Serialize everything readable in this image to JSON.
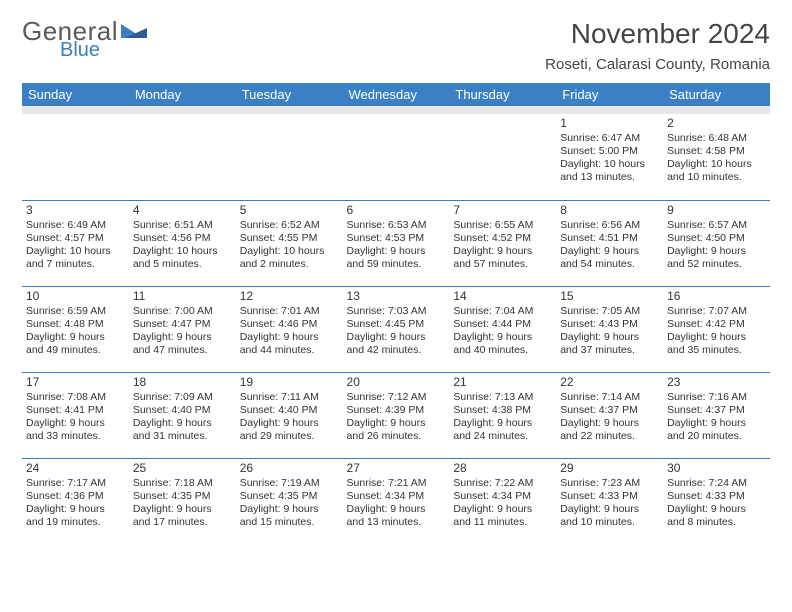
{
  "logo": {
    "text1": "General",
    "text2": "Blue",
    "color_gray": "#5a5a5a",
    "color_blue": "#3b7fc4"
  },
  "title": "November 2024",
  "location": "Roseti, Calarasi County, Romania",
  "header_bg": "#3b7fc4",
  "spacer_bg": "#e8e8e8",
  "day_border": "#3b7fc4",
  "font_family": "Arial",
  "day_headers": [
    "Sunday",
    "Monday",
    "Tuesday",
    "Wednesday",
    "Thursday",
    "Friday",
    "Saturday"
  ],
  "weeks": [
    [
      null,
      null,
      null,
      null,
      null,
      {
        "n": "1",
        "sunrise": "6:47 AM",
        "sunset": "5:00 PM",
        "daylight": "10 hours and 13 minutes."
      },
      {
        "n": "2",
        "sunrise": "6:48 AM",
        "sunset": "4:58 PM",
        "daylight": "10 hours and 10 minutes."
      }
    ],
    [
      {
        "n": "3",
        "sunrise": "6:49 AM",
        "sunset": "4:57 PM",
        "daylight": "10 hours and 7 minutes."
      },
      {
        "n": "4",
        "sunrise": "6:51 AM",
        "sunset": "4:56 PM",
        "daylight": "10 hours and 5 minutes."
      },
      {
        "n": "5",
        "sunrise": "6:52 AM",
        "sunset": "4:55 PM",
        "daylight": "10 hours and 2 minutes."
      },
      {
        "n": "6",
        "sunrise": "6:53 AM",
        "sunset": "4:53 PM",
        "daylight": "9 hours and 59 minutes."
      },
      {
        "n": "7",
        "sunrise": "6:55 AM",
        "sunset": "4:52 PM",
        "daylight": "9 hours and 57 minutes."
      },
      {
        "n": "8",
        "sunrise": "6:56 AM",
        "sunset": "4:51 PM",
        "daylight": "9 hours and 54 minutes."
      },
      {
        "n": "9",
        "sunrise": "6:57 AM",
        "sunset": "4:50 PM",
        "daylight": "9 hours and 52 minutes."
      }
    ],
    [
      {
        "n": "10",
        "sunrise": "6:59 AM",
        "sunset": "4:48 PM",
        "daylight": "9 hours and 49 minutes."
      },
      {
        "n": "11",
        "sunrise": "7:00 AM",
        "sunset": "4:47 PM",
        "daylight": "9 hours and 47 minutes."
      },
      {
        "n": "12",
        "sunrise": "7:01 AM",
        "sunset": "4:46 PM",
        "daylight": "9 hours and 44 minutes."
      },
      {
        "n": "13",
        "sunrise": "7:03 AM",
        "sunset": "4:45 PM",
        "daylight": "9 hours and 42 minutes."
      },
      {
        "n": "14",
        "sunrise": "7:04 AM",
        "sunset": "4:44 PM",
        "daylight": "9 hours and 40 minutes."
      },
      {
        "n": "15",
        "sunrise": "7:05 AM",
        "sunset": "4:43 PM",
        "daylight": "9 hours and 37 minutes."
      },
      {
        "n": "16",
        "sunrise": "7:07 AM",
        "sunset": "4:42 PM",
        "daylight": "9 hours and 35 minutes."
      }
    ],
    [
      {
        "n": "17",
        "sunrise": "7:08 AM",
        "sunset": "4:41 PM",
        "daylight": "9 hours and 33 minutes."
      },
      {
        "n": "18",
        "sunrise": "7:09 AM",
        "sunset": "4:40 PM",
        "daylight": "9 hours and 31 minutes."
      },
      {
        "n": "19",
        "sunrise": "7:11 AM",
        "sunset": "4:40 PM",
        "daylight": "9 hours and 29 minutes."
      },
      {
        "n": "20",
        "sunrise": "7:12 AM",
        "sunset": "4:39 PM",
        "daylight": "9 hours and 26 minutes."
      },
      {
        "n": "21",
        "sunrise": "7:13 AM",
        "sunset": "4:38 PM",
        "daylight": "9 hours and 24 minutes."
      },
      {
        "n": "22",
        "sunrise": "7:14 AM",
        "sunset": "4:37 PM",
        "daylight": "9 hours and 22 minutes."
      },
      {
        "n": "23",
        "sunrise": "7:16 AM",
        "sunset": "4:37 PM",
        "daylight": "9 hours and 20 minutes."
      }
    ],
    [
      {
        "n": "24",
        "sunrise": "7:17 AM",
        "sunset": "4:36 PM",
        "daylight": "9 hours and 19 minutes."
      },
      {
        "n": "25",
        "sunrise": "7:18 AM",
        "sunset": "4:35 PM",
        "daylight": "9 hours and 17 minutes."
      },
      {
        "n": "26",
        "sunrise": "7:19 AM",
        "sunset": "4:35 PM",
        "daylight": "9 hours and 15 minutes."
      },
      {
        "n": "27",
        "sunrise": "7:21 AM",
        "sunset": "4:34 PM",
        "daylight": "9 hours and 13 minutes."
      },
      {
        "n": "28",
        "sunrise": "7:22 AM",
        "sunset": "4:34 PM",
        "daylight": "9 hours and 11 minutes."
      },
      {
        "n": "29",
        "sunrise": "7:23 AM",
        "sunset": "4:33 PM",
        "daylight": "9 hours and 10 minutes."
      },
      {
        "n": "30",
        "sunrise": "7:24 AM",
        "sunset": "4:33 PM",
        "daylight": "9 hours and 8 minutes."
      }
    ]
  ]
}
